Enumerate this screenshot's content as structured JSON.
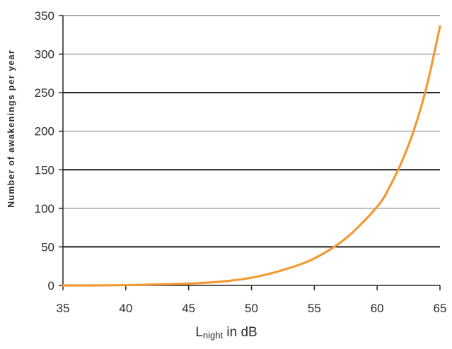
{
  "chart_data": {
    "type": "line",
    "xlabel": {
      "main": "L",
      "subscript": "night",
      "suffix": " in dB"
    },
    "ylabel": "Number of awakenings per year",
    "xlim": [
      35,
      65
    ],
    "ylim": [
      0,
      350
    ],
    "x_ticks": [
      35,
      40,
      45,
      50,
      55,
      60,
      65
    ],
    "y_ticks": [
      0,
      50,
      100,
      150,
      200,
      250,
      300,
      350
    ],
    "grid": "horizontal",
    "colors": {
      "line": "#f39a35",
      "grid_dark": "#1a1a1a",
      "grid_light": "#a9a9a9",
      "axis": "#222222"
    },
    "series": [
      {
        "x": [
          35,
          37.5,
          40,
          42.5,
          45,
          47.5,
          50,
          52.5,
          55,
          57.5,
          60,
          61,
          62,
          63,
          64,
          65
        ],
        "y": [
          0,
          0,
          0.4,
          1.3,
          2.4,
          4.8,
          10,
          20,
          35,
          61,
          102,
          128,
          162,
          205,
          262,
          336
        ]
      }
    ]
  }
}
